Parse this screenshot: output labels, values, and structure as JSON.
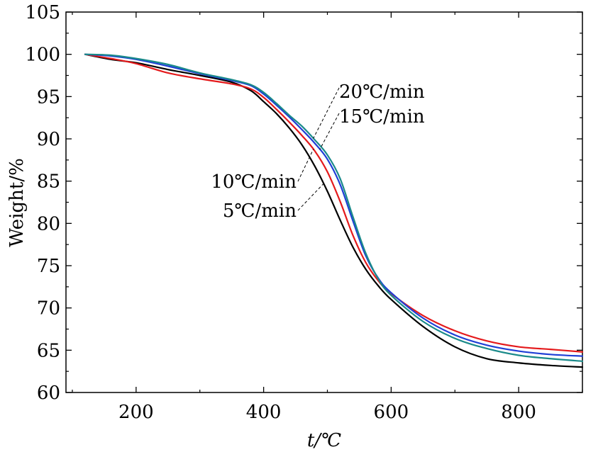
{
  "chart_data": {
    "type": "line",
    "title": "",
    "xlabel": "t/℃",
    "ylabel": "Weight/%",
    "xlim": [
      90,
      900
    ],
    "ylim": [
      60,
      105
    ],
    "xticks": [
      200,
      400,
      600,
      800
    ],
    "yticks": [
      60,
      65,
      70,
      75,
      80,
      85,
      90,
      95,
      100,
      105
    ],
    "grid": false,
    "legend": "none",
    "series": [
      {
        "name": "5℃/min",
        "color": "#000000",
        "x": [
          120,
          160,
          200,
          250,
          300,
          350,
          380,
          400,
          420,
          440,
          460,
          480,
          500,
          520,
          540,
          560,
          580,
          600,
          650,
          700,
          750,
          800,
          850,
          900
        ],
        "y": [
          100,
          99.4,
          99.0,
          98.2,
          97.5,
          96.7,
          95.7,
          94.4,
          93.0,
          91.3,
          89.3,
          86.8,
          83.8,
          80.4,
          77.2,
          74.6,
          72.6,
          71.0,
          67.8,
          65.4,
          64.0,
          63.5,
          63.2,
          63.0
        ]
      },
      {
        "name": "10℃/min",
        "color": "#e41a1c",
        "x": [
          120,
          160,
          200,
          250,
          300,
          350,
          380,
          400,
          420,
          440,
          460,
          480,
          500,
          520,
          540,
          560,
          580,
          600,
          650,
          700,
          750,
          800,
          850,
          900
        ],
        "y": [
          100,
          99.5,
          98.9,
          97.8,
          97.1,
          96.5,
          95.9,
          94.9,
          93.5,
          92.0,
          90.4,
          88.6,
          86.1,
          82.6,
          78.6,
          75.4,
          73.2,
          71.7,
          69.1,
          67.3,
          66.1,
          65.4,
          65.1,
          64.8
        ]
      },
      {
        "name": "15℃/min",
        "color": "#1f3fd6",
        "x": [
          120,
          160,
          200,
          250,
          300,
          350,
          380,
          400,
          420,
          440,
          460,
          480,
          500,
          520,
          540,
          560,
          580,
          600,
          650,
          700,
          750,
          800,
          850,
          900
        ],
        "y": [
          100,
          99.8,
          99.4,
          98.6,
          97.7,
          96.9,
          96.3,
          95.3,
          94.0,
          92.6,
          91.1,
          89.5,
          87.6,
          84.6,
          80.3,
          76.2,
          73.5,
          71.8,
          68.8,
          66.8,
          65.6,
          64.9,
          64.5,
          64.3
        ]
      },
      {
        "name": "20℃/min",
        "color": "#1a8a8a",
        "x": [
          120,
          160,
          200,
          250,
          300,
          350,
          380,
          400,
          420,
          440,
          460,
          480,
          500,
          520,
          540,
          560,
          580,
          600,
          650,
          700,
          750,
          800,
          850,
          900
        ],
        "y": [
          100,
          99.9,
          99.5,
          98.8,
          97.8,
          97.0,
          96.4,
          95.5,
          94.2,
          92.8,
          91.5,
          89.9,
          88.1,
          85.3,
          80.8,
          76.5,
          73.4,
          71.5,
          68.4,
          66.4,
          65.2,
          64.4,
          64.0,
          63.7
        ]
      }
    ],
    "annotations": [
      {
        "text": "20℃/min",
        "series": "20℃/min",
        "at_x": 478
      },
      {
        "text": "15℃/min",
        "series": "15℃/min",
        "at_x": 488
      },
      {
        "text": "10℃/min",
        "series": "10℃/min",
        "at_x": 478
      },
      {
        "text": "5℃/min",
        "series": "5℃/min",
        "at_x": 494
      }
    ]
  }
}
